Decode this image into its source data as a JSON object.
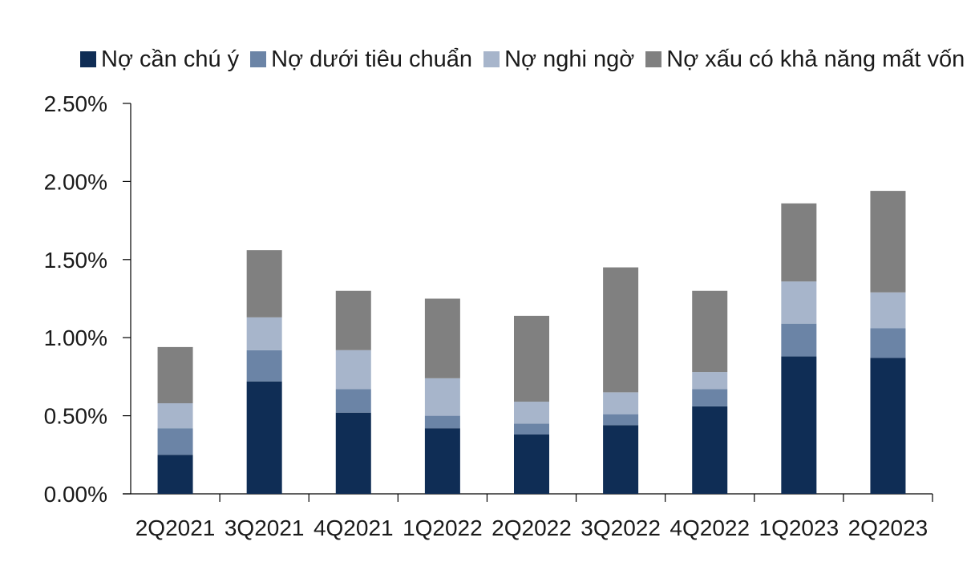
{
  "chart_data": {
    "type": "bar",
    "stacked": true,
    "title": "",
    "xlabel": "",
    "ylabel": "",
    "ylim": [
      0,
      2.5
    ],
    "y_ticks": [
      "0.00%",
      "0.50%",
      "1.00%",
      "1.50%",
      "2.00%",
      "2.50%"
    ],
    "y_tick_values": [
      0,
      0.5,
      1.0,
      1.5,
      2.0,
      2.5
    ],
    "grid": false,
    "legend_position": "top",
    "categories": [
      "2Q2021",
      "3Q2021",
      "4Q2021",
      "1Q2022",
      "2Q2022",
      "3Q2022",
      "4Q2022",
      "1Q2023",
      "2Q2023"
    ],
    "series": [
      {
        "name": "Nợ cần chú ý",
        "color": "#0f2d55",
        "values": [
          0.25,
          0.72,
          0.52,
          0.42,
          0.38,
          0.44,
          0.56,
          0.88,
          0.87
        ]
      },
      {
        "name": "Nợ dưới tiêu chuẩn",
        "color": "#6b84a6",
        "values": [
          0.17,
          0.2,
          0.15,
          0.08,
          0.07,
          0.07,
          0.11,
          0.21,
          0.19
        ]
      },
      {
        "name": "Nợ nghi ngờ",
        "color": "#a7b5cb",
        "values": [
          0.16,
          0.21,
          0.25,
          0.24,
          0.14,
          0.14,
          0.11,
          0.27,
          0.23
        ]
      },
      {
        "name": "Nợ xấu có khả năng mất vốn",
        "color": "#808080",
        "values": [
          0.36,
          0.43,
          0.38,
          0.51,
          0.55,
          0.8,
          0.52,
          0.5,
          0.65
        ]
      }
    ]
  }
}
